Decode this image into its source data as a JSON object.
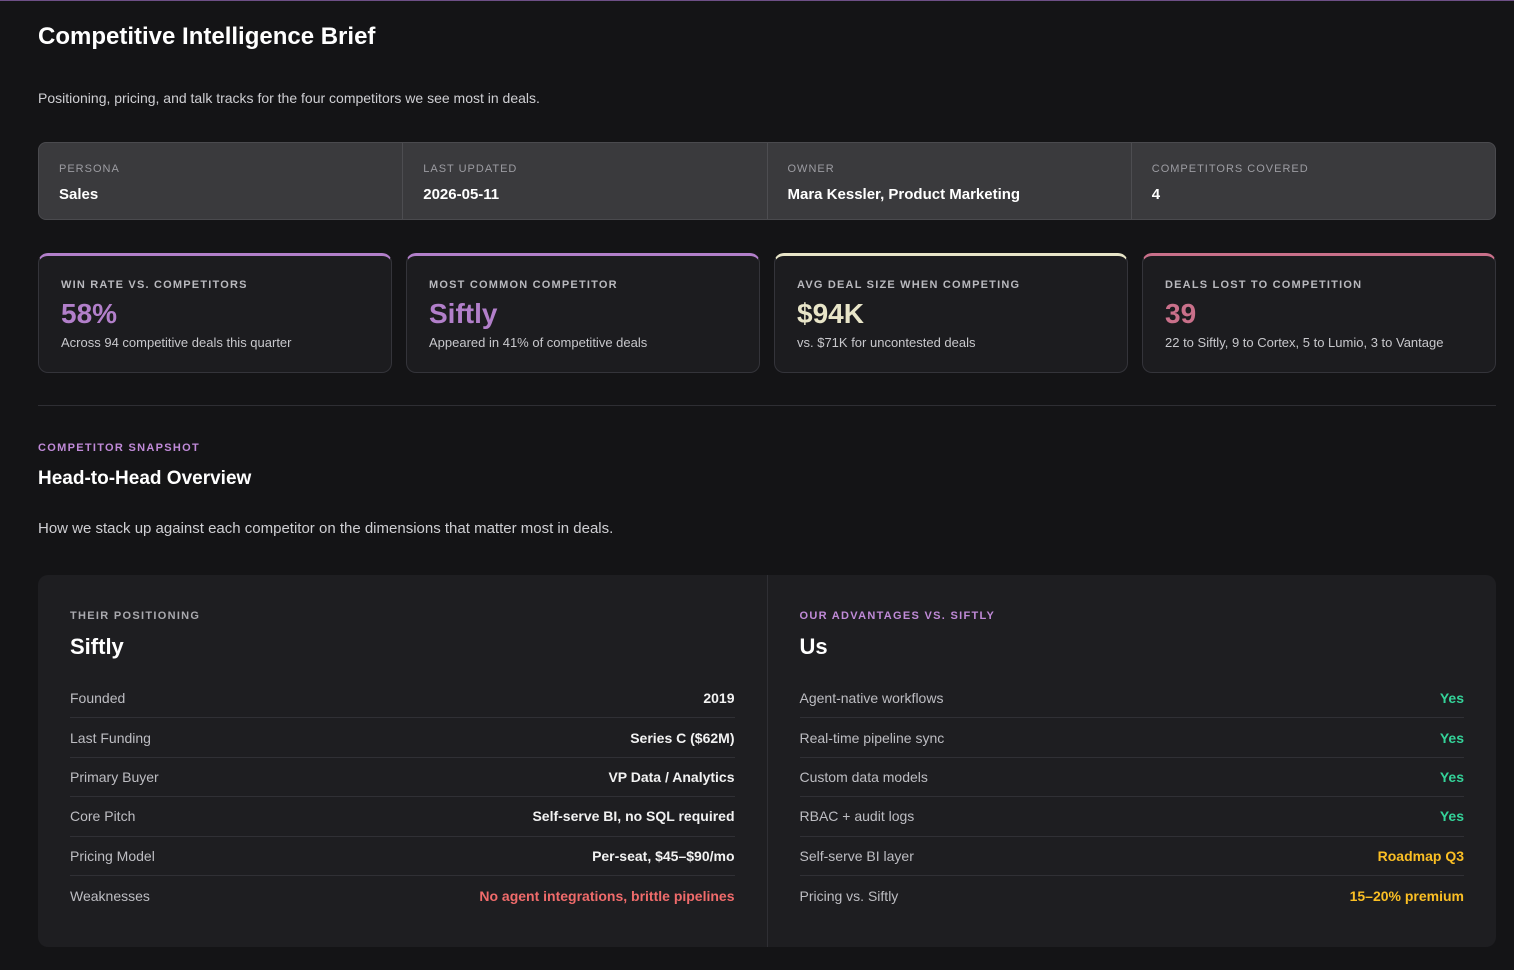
{
  "header": {
    "title": "Competitive Intelligence Brief",
    "subtitle": "Positioning, pricing, and talk tracks for the four competitors we see most in deals."
  },
  "meta": [
    {
      "label": "PERSONA",
      "value": "Sales"
    },
    {
      "label": "LAST UPDATED",
      "value": "2026-05-11"
    },
    {
      "label": "OWNER",
      "value": "Mara Kessler, Product Marketing"
    },
    {
      "label": "COMPETITORS COVERED",
      "value": "4"
    }
  ],
  "kpis": [
    {
      "label": "WIN RATE VS. COMPETITORS",
      "value": "58%",
      "note": "Across 94 competitive deals this quarter",
      "color": "#b27fca"
    },
    {
      "label": "MOST COMMON COMPETITOR",
      "value": "Siftly",
      "note": "Appeared in 41% of competitive deals",
      "color": "#b27fca"
    },
    {
      "label": "AVG DEAL SIZE WHEN COMPETING",
      "value": "$94K",
      "note": "vs. $71K for uncontested deals",
      "color": "#e8e5c8"
    },
    {
      "label": "DEALS LOST TO COMPETITION",
      "value": "39",
      "note": "22 to Siftly, 9 to Cortex, 5 to Lumio, 3 to Vantage",
      "color": "#c9708a"
    }
  ],
  "section": {
    "eyebrow": "COMPETITOR SNAPSHOT",
    "heading": "Head-to-Head Overview",
    "description": "How we stack up against each competitor on the dimensions that matter most in deals."
  },
  "comparison": [
    {
      "eyebrow": "THEIR POSITIONING",
      "name": "Siftly",
      "rows": [
        {
          "label": "Founded",
          "value": "2019",
          "color": "#f2f2f2"
        },
        {
          "label": "Last Funding",
          "value": "Series C ($62M)",
          "color": "#f2f2f2"
        },
        {
          "label": "Primary Buyer",
          "value": "VP Data / Analytics",
          "color": "#f2f2f2"
        },
        {
          "label": "Core Pitch",
          "value": "Self-serve BI, no SQL required",
          "color": "#f2f2f2"
        },
        {
          "label": "Pricing Model",
          "value": "Per-seat, $45–$90/mo",
          "color": "#f2f2f2"
        },
        {
          "label": "Weaknesses",
          "value": "No agent integrations, brittle pipelines",
          "color": "#f06b6b"
        }
      ]
    },
    {
      "eyebrow": "OUR ADVANTAGES VS. SIFTLY",
      "name": "Us",
      "rows": [
        {
          "label": "Agent-native workflows",
          "value": "Yes",
          "color": "#34d399"
        },
        {
          "label": "Real-time pipeline sync",
          "value": "Yes",
          "color": "#34d399"
        },
        {
          "label": "Custom data models",
          "value": "Yes",
          "color": "#34d399"
        },
        {
          "label": "RBAC + audit logs",
          "value": "Yes",
          "color": "#34d399"
        },
        {
          "label": "Self-serve BI layer",
          "value": "Roadmap Q3",
          "color": "#fbbf24"
        },
        {
          "label": "Pricing vs. Siftly",
          "value": "15–20% premium",
          "color": "#fbbf24"
        }
      ]
    }
  ]
}
